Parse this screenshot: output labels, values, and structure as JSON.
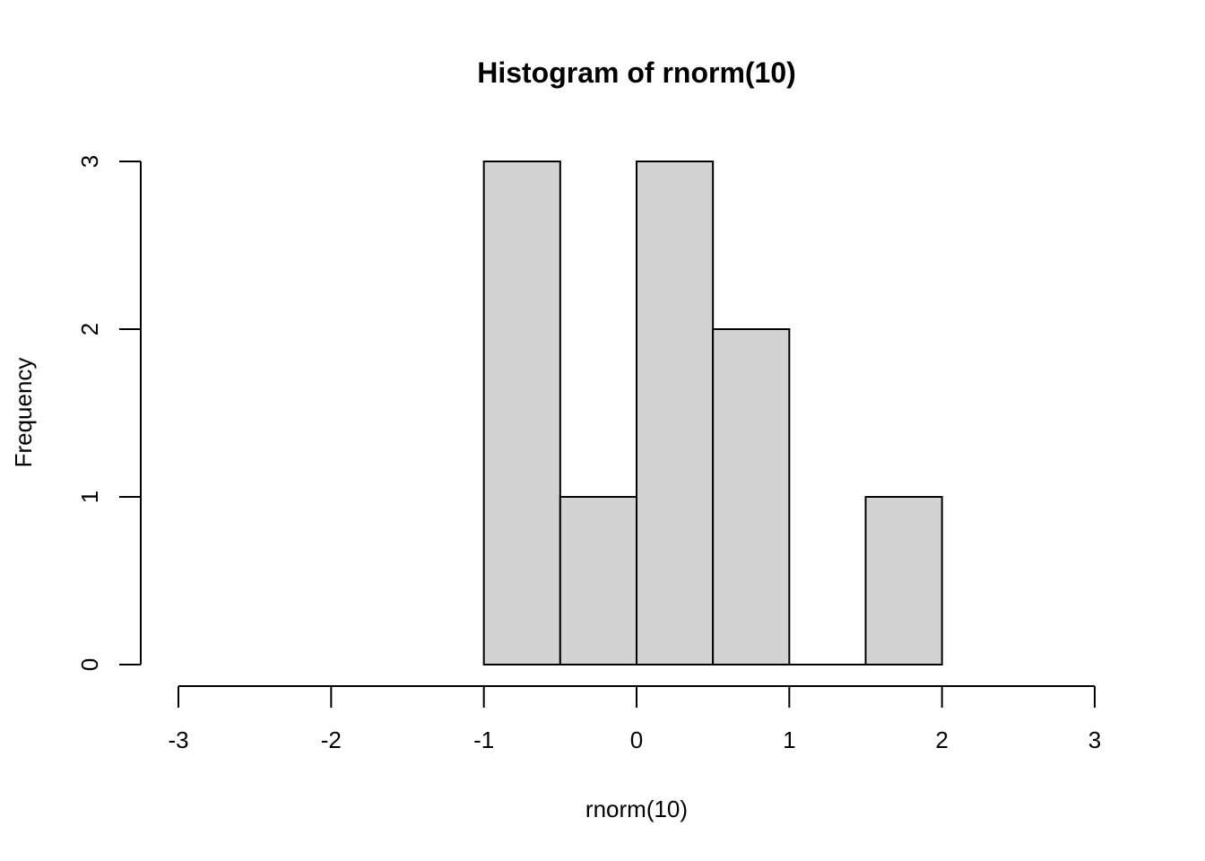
{
  "chart_data": {
    "type": "bar",
    "title": "Histogram of rnorm(10)",
    "xlabel": "rnorm(10)",
    "ylabel": "Frequency",
    "bins": [
      {
        "start": -1.0,
        "end": -0.5,
        "count": 3
      },
      {
        "start": -0.5,
        "end": 0.0,
        "count": 1
      },
      {
        "start": 0.0,
        "end": 0.5,
        "count": 3
      },
      {
        "start": 0.5,
        "end": 1.0,
        "count": 2
      },
      {
        "start": 1.0,
        "end": 1.5,
        "count": 0
      },
      {
        "start": 1.5,
        "end": 2.0,
        "count": 1
      }
    ],
    "xlim": [
      -3,
      3
    ],
    "ylim": [
      0,
      3
    ],
    "x_ticks": [
      "-3",
      "-2",
      "-1",
      "0",
      "1",
      "2",
      "3"
    ],
    "y_ticks": [
      "0",
      "1",
      "2",
      "3"
    ],
    "bar_fill": "#d3d3d3",
    "bar_stroke": "#000000",
    "grid": false
  }
}
